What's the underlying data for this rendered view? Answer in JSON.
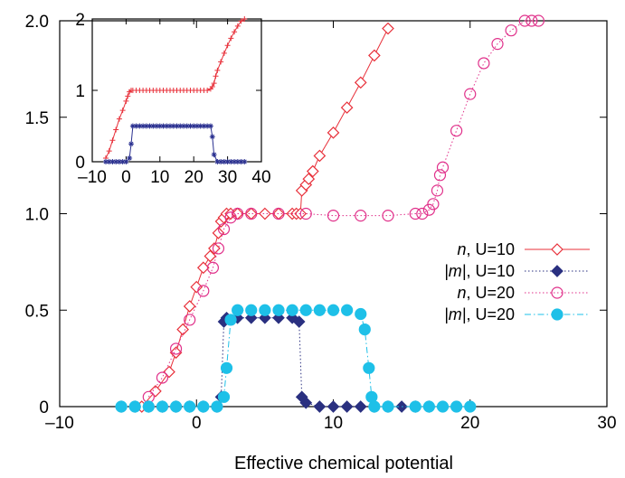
{
  "chart_data": [
    {
      "type": "line",
      "title": "",
      "xlabel": "Effective chemical potential",
      "ylabel": "",
      "xlim": [
        -10,
        30
      ],
      "ylim": [
        0,
        2
      ],
      "x_ticks": [
        -10,
        0,
        10,
        20,
        30
      ],
      "x_tick_labels": [
        "–10",
        "0",
        "10",
        "20",
        "30"
      ],
      "y_ticks": [
        0,
        0.5,
        1,
        1.5,
        2
      ],
      "y_tick_labels": [
        "0",
        "0.5",
        "1.0",
        "1.5",
        "2.0"
      ],
      "grid": false,
      "legend_position": "center-right",
      "series": [
        {
          "name": "n, U=10",
          "legend_var": "n",
          "legend_rest": ", U=10",
          "color": "#e8303a",
          "marker": "diamond-open",
          "dash": "solid",
          "x": [
            -4,
            -3,
            -2,
            -1.5,
            -1,
            -0.5,
            0,
            0.5,
            1,
            1.3,
            1.6,
            1.8,
            2,
            2.2,
            2.5,
            3,
            4,
            5,
            6,
            7,
            7.3,
            7.6,
            7.7,
            8,
            8.2,
            8.5,
            9,
            10,
            11,
            12,
            13,
            14
          ],
          "y": [
            0,
            0.08,
            0.18,
            0.28,
            0.4,
            0.52,
            0.62,
            0.72,
            0.78,
            0.82,
            0.9,
            0.96,
            0.98,
            1.0,
            1.0,
            1.0,
            1.0,
            1.0,
            1.0,
            1.0,
            1.0,
            1.0,
            1.12,
            1.15,
            1.18,
            1.22,
            1.3,
            1.42,
            1.55,
            1.68,
            1.82,
            1.96
          ]
        },
        {
          "name": "|m|, U=10",
          "legend_var": "|m|",
          "legend_rest": ", U=10",
          "color": "#2a3080",
          "marker": "diamond-filled",
          "dash": "dotted",
          "x": [
            -5.5,
            -4.5,
            -3.5,
            -2.5,
            -1.5,
            -0.5,
            0.5,
            1.5,
            1.8,
            2.0,
            2.2,
            3,
            4,
            5,
            6,
            7,
            7.5,
            7.7,
            8,
            9,
            10,
            11,
            12,
            13,
            14,
            15,
            16,
            17
          ],
          "y": [
            0,
            0,
            0,
            0,
            0,
            0,
            0,
            0,
            0.05,
            0.44,
            0.46,
            0.46,
            0.46,
            0.46,
            0.46,
            0.46,
            0.44,
            0.05,
            0.02,
            0,
            0,
            0,
            0,
            0,
            0,
            0,
            0,
            0
          ]
        },
        {
          "name": "n, U=20",
          "legend_var": "n",
          "legend_rest": ", U=20",
          "color": "#e0308a",
          "marker": "circle-open",
          "dash": "dotted",
          "x": [
            -3.5,
            -2.5,
            -1.5,
            -0.5,
            0.5,
            1.2,
            1.6,
            2,
            2.5,
            3,
            4,
            6,
            8,
            10,
            12,
            14,
            16,
            16.5,
            17,
            17.3,
            17.6,
            17.8,
            18,
            19,
            20,
            21,
            22,
            23,
            24,
            24.5,
            25
          ],
          "y": [
            0.05,
            0.15,
            0.3,
            0.45,
            0.6,
            0.72,
            0.82,
            0.92,
            0.98,
            1.0,
            1.0,
            1.0,
            1.0,
            0.99,
            0.99,
            0.99,
            1.0,
            1.0,
            1.02,
            1.05,
            1.12,
            1.2,
            1.24,
            1.43,
            1.62,
            1.78,
            1.88,
            1.95,
            2.0,
            2.0,
            2.0
          ]
        },
        {
          "name": "|m|, U=20",
          "legend_var": "|m|",
          "legend_rest": ", U=20",
          "color": "#1ec0e8",
          "marker": "circle-filled",
          "dash": "dashdot",
          "x": [
            -5.5,
            -4.5,
            -3.5,
            -2.5,
            -1.5,
            -0.5,
            0.5,
            1.5,
            2.0,
            2.2,
            2.5,
            3,
            4,
            5,
            6,
            7,
            8,
            9,
            10,
            11,
            12,
            12.3,
            12.6,
            12.8,
            13,
            14,
            16,
            17,
            18,
            19,
            20
          ],
          "y": [
            0,
            0,
            0,
            0,
            0,
            0,
            0,
            0,
            0.05,
            0.2,
            0.45,
            0.5,
            0.5,
            0.5,
            0.5,
            0.5,
            0.5,
            0.5,
            0.5,
            0.5,
            0.48,
            0.4,
            0.2,
            0.05,
            0,
            0,
            0,
            0,
            0,
            0,
            0
          ]
        }
      ]
    },
    {
      "type": "line",
      "title": "",
      "xlabel": "",
      "ylabel": "",
      "xlim": [
        -10,
        40
      ],
      "ylim": [
        0,
        2
      ],
      "x_ticks": [
        -10,
        0,
        10,
        20,
        30,
        40
      ],
      "x_tick_labels": [
        "–10",
        "0",
        "10",
        "20",
        "30",
        "40"
      ],
      "y_ticks": [
        0,
        1,
        2
      ],
      "y_tick_labels": [
        "0",
        "1",
        "2"
      ],
      "grid": false,
      "series": [
        {
          "color": "#e8303a",
          "marker": "plus",
          "x": [
            -6,
            -5,
            -4,
            -3,
            -2,
            -1,
            0,
            0.5,
            1,
            1.5,
            2,
            3,
            4,
            5,
            6,
            7,
            8,
            9,
            10,
            11,
            12,
            13,
            14,
            15,
            16,
            17,
            18,
            19,
            20,
            21,
            22,
            23,
            24,
            25,
            25.5,
            26,
            26.5,
            27,
            28,
            29,
            30,
            31,
            32,
            33,
            34,
            35
          ],
          "y": [
            0.05,
            0.15,
            0.3,
            0.45,
            0.6,
            0.72,
            0.85,
            0.92,
            0.98,
            1.0,
            1.0,
            1.0,
            1.0,
            1.0,
            1.0,
            1.0,
            1.0,
            1.0,
            1.0,
            1.0,
            1.0,
            1.0,
            1.0,
            1.0,
            1.0,
            1.0,
            1.0,
            1.0,
            1.0,
            1.0,
            1.0,
            1.0,
            1.0,
            1.02,
            1.05,
            1.1,
            1.2,
            1.28,
            1.4,
            1.52,
            1.63,
            1.73,
            1.82,
            1.9,
            1.97,
            2.0
          ]
        },
        {
          "color": "#2a3090",
          "marker": "star",
          "x": [
            -6,
            -5,
            -4,
            -3,
            -2,
            -1,
            0,
            1,
            1.5,
            2,
            3,
            4,
            5,
            6,
            7,
            8,
            9,
            10,
            11,
            12,
            13,
            14,
            15,
            16,
            17,
            18,
            19,
            20,
            21,
            22,
            23,
            24,
            25,
            25.5,
            26,
            27,
            28,
            29,
            30,
            31,
            32,
            33,
            34,
            35
          ],
          "y": [
            0,
            0,
            0,
            0,
            0,
            0,
            0,
            0.05,
            0.25,
            0.5,
            0.5,
            0.5,
            0.5,
            0.5,
            0.5,
            0.5,
            0.5,
            0.5,
            0.5,
            0.5,
            0.5,
            0.5,
            0.5,
            0.5,
            0.5,
            0.5,
            0.5,
            0.5,
            0.5,
            0.5,
            0.5,
            0.5,
            0.5,
            0.35,
            0.1,
            0,
            0,
            0,
            0,
            0,
            0,
            0,
            0,
            0
          ]
        }
      ]
    }
  ]
}
